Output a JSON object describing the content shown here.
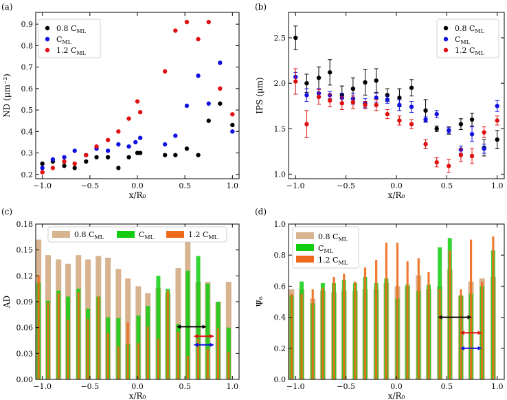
{
  "figure": {
    "panels": [
      "(a)",
      "(b)",
      "(c)",
      "(d)"
    ]
  },
  "legend": {
    "s1": {
      "main": "0.8 C",
      "sub": "ML"
    },
    "s2": {
      "main": "C",
      "sub": "ML"
    },
    "s3": {
      "main": "1.2 C",
      "sub": "ML"
    }
  },
  "colors": {
    "s1_marker": "#000000",
    "s2_marker": "#1010e0",
    "s3_marker": "#e01010",
    "s1_bar": "#d7b48f",
    "s2_bar": "#12cc12",
    "s3_bar": "#ee6a1a"
  },
  "chart_data": [
    {
      "id": "a",
      "type": "scatter",
      "ylabel": "ND (μm⁻²)",
      "xlabel": "x/R₀",
      "xlim": [
        -1.07,
        1.07
      ],
      "ylim": [
        0.18,
        0.955
      ],
      "xticks": [
        -1.0,
        -0.5,
        0.0,
        0.5,
        1.0
      ],
      "xtick_labels": [
        "−1.0",
        "−0.5",
        "0.0",
        "0.5",
        "1.0"
      ],
      "yticks": [
        0.2,
        0.3,
        0.4,
        0.5,
        0.6,
        0.7,
        0.8,
        0.9
      ],
      "ytick_labels": [
        "0.2",
        "0.3",
        "0.4",
        "0.5",
        "0.6",
        "0.7",
        "0.8",
        "0.9"
      ],
      "series": [
        {
          "name": "0.8 C_ML",
          "x": [
            -1.0,
            -0.89,
            -0.77,
            -0.66,
            -0.54,
            -0.43,
            -0.31,
            -0.2,
            -0.09,
            0.0,
            0.03,
            0.29,
            0.4,
            0.52,
            0.64,
            0.75,
            0.87,
            1.0
          ],
          "y": [
            0.25,
            0.26,
            0.24,
            0.23,
            0.26,
            0.28,
            0.28,
            0.23,
            0.28,
            0.3,
            0.3,
            0.29,
            0.29,
            0.32,
            0.29,
            0.45,
            0.53,
            0.43
          ]
        },
        {
          "name": "C_ML",
          "x": [
            -1.0,
            -0.89,
            -0.77,
            -0.66,
            -0.54,
            -0.43,
            -0.31,
            -0.2,
            -0.09,
            -0.02,
            0.03,
            0.29,
            0.4,
            0.52,
            0.64,
            0.75,
            0.87,
            1.0
          ],
          "y": [
            0.23,
            0.27,
            0.28,
            0.31,
            0.29,
            0.32,
            0.31,
            0.34,
            0.33,
            0.35,
            0.37,
            0.34,
            0.38,
            0.52,
            0.66,
            0.53,
            0.72,
            0.4
          ]
        },
        {
          "name": "1.2 C_ML",
          "x": [
            -1.0,
            -0.89,
            -0.77,
            -0.66,
            -0.54,
            -0.43,
            -0.31,
            -0.2,
            -0.09,
            0.0,
            0.03,
            0.29,
            0.4,
            0.52,
            0.64,
            0.75,
            0.87,
            1.0
          ],
          "y": [
            0.21,
            0.23,
            0.26,
            0.25,
            0.29,
            0.33,
            0.36,
            0.4,
            0.46,
            0.54,
            0.49,
            0.68,
            0.87,
            0.91,
            0.83,
            0.91,
            0.6,
            0.48
          ]
        }
      ]
    },
    {
      "id": "b",
      "type": "scatter-errorbar",
      "ylabel": "IPS (μm)",
      "xlabel": "x/R₀",
      "xlim": [
        -1.07,
        1.07
      ],
      "ylim": [
        0.95,
        2.78
      ],
      "xticks": [
        -1.0,
        -0.5,
        0.0,
        0.5,
        1.0
      ],
      "xtick_labels": [
        "−1.0",
        "−0.5",
        "0.0",
        "0.5",
        "1.0"
      ],
      "yticks": [
        1.0,
        1.5,
        2.0,
        2.5
      ],
      "ytick_labels": [
        "1.0",
        "1.5",
        "2.0",
        "2.5"
      ],
      "series": [
        {
          "name": "0.8 C_ML",
          "x": [
            -1.0,
            -0.89,
            -0.77,
            -0.66,
            -0.54,
            -0.43,
            -0.31,
            -0.2,
            -0.09,
            0.03,
            0.15,
            0.29,
            0.4,
            0.52,
            0.64,
            0.75,
            0.87,
            1.0
          ],
          "y": [
            2.5,
            2.0,
            2.06,
            2.12,
            1.87,
            1.94,
            2.01,
            2.03,
            1.87,
            1.84,
            1.95,
            1.7,
            1.5,
            1.48,
            1.55,
            1.6,
            1.29,
            1.38
          ],
          "err": [
            0.13,
            0.1,
            0.12,
            0.14,
            0.1,
            0.12,
            0.14,
            0.13,
            0.07,
            0.1,
            0.09,
            0.12,
            0.03,
            0.04,
            0.06,
            0.07,
            0.09,
            0.1
          ]
        },
        {
          "name": "C_ML",
          "x": [
            -1.0,
            -0.89,
            -0.77,
            -0.66,
            -0.54,
            -0.43,
            -0.31,
            -0.2,
            -0.09,
            0.03,
            0.15,
            0.29,
            0.4,
            0.52,
            0.64,
            0.75,
            0.87,
            1.0
          ],
          "y": [
            2.07,
            1.87,
            1.89,
            1.87,
            1.84,
            1.83,
            1.78,
            1.84,
            1.82,
            1.76,
            1.74,
            1.6,
            1.66,
            1.48,
            1.27,
            1.44,
            1.28,
            1.75
          ],
          "err": [
            0.05,
            0.07,
            0.05,
            0.04,
            0.05,
            0.06,
            0.05,
            0.05,
            0.04,
            0.06,
            0.06,
            0.03,
            0.04,
            0.03,
            0.04,
            0.08,
            0.05,
            0.06
          ]
        },
        {
          "name": "1.2 C_ML",
          "x": [
            -1.0,
            -0.89,
            -0.77,
            -0.66,
            -0.54,
            -0.43,
            -0.31,
            -0.2,
            -0.09,
            0.03,
            0.15,
            0.29,
            0.4,
            0.52,
            0.64,
            0.75,
            0.87,
            1.0
          ],
          "y": [
            2.02,
            1.55,
            1.85,
            1.81,
            1.78,
            1.79,
            1.76,
            1.76,
            1.66,
            1.59,
            1.55,
            1.33,
            1.13,
            1.09,
            1.21,
            1.2,
            1.46,
            1.59
          ],
          "err": [
            0.14,
            0.15,
            0.08,
            0.07,
            0.07,
            0.07,
            0.04,
            0.06,
            0.05,
            0.05,
            0.05,
            0.05,
            0.05,
            0.07,
            0.07,
            0.08,
            0.06,
            0.05
          ]
        }
      ]
    },
    {
      "id": "c",
      "type": "bar",
      "ylabel": "AD",
      "xlabel": "x/R₀",
      "xlim": [
        -1.07,
        1.07
      ],
      "ylim": [
        0.0,
        0.18
      ],
      "xticks": [
        -1.0,
        -0.5,
        0.0,
        0.5,
        1.0
      ],
      "xtick_labels": [
        "−1.0",
        "−0.5",
        "0.0",
        "0.5",
        "1.0"
      ],
      "yticks": [
        0.0,
        0.03,
        0.06,
        0.09,
        0.12,
        0.15,
        0.18
      ],
      "ytick_labels": [
        "0.00",
        "0.03",
        "0.06",
        "0.09",
        "0.12",
        "0.15",
        "0.18"
      ],
      "x": [
        -1.04,
        -0.94,
        -0.83,
        -0.73,
        -0.62,
        -0.52,
        -0.41,
        -0.31,
        -0.2,
        -0.1,
        0.01,
        0.11,
        0.22,
        0.32,
        0.43,
        0.53,
        0.64,
        0.74,
        0.85,
        0.96
      ],
      "series": [
        {
          "name": "0.8 C_ML",
          "values": [
            0.162,
            0.144,
            0.139,
            0.134,
            0.144,
            0.139,
            0.143,
            0.141,
            0.128,
            0.117,
            0.108,
            0.1,
            0.106,
            0.1,
            0.129,
            0.159,
            0.113,
            0.113,
            0.09,
            0.113
          ]
        },
        {
          "name": "C_ML",
          "values": [
            0.112,
            0.091,
            0.103,
            0.096,
            0.105,
            0.082,
            0.096,
            0.072,
            0.071,
            0.041,
            0.074,
            0.085,
            0.12,
            0.105,
            0.064,
            0.126,
            0.143,
            0.111,
            0.09,
            0.06
          ]
        },
        {
          "name": "1.2 C_ML",
          "values": [
            0.12,
            0.089,
            0.1,
            0.069,
            0.101,
            0.07,
            0.096,
            0.054,
            0.038,
            0.066,
            0.042,
            0.061,
            0.047,
            0.103,
            0.055,
            0.027,
            0.047,
            0.035,
            0.059,
            0.032
          ]
        }
      ],
      "annotations": [
        {
          "type": "double-arrow",
          "color": "#000000",
          "x1": 0.42,
          "x2": 0.72,
          "y": 0.061
        },
        {
          "type": "double-arrow",
          "color": "#e01010",
          "x1": 0.6,
          "x2": 0.8,
          "y": 0.05
        },
        {
          "type": "double-arrow",
          "color": "#1010e0",
          "x1": 0.6,
          "x2": 0.8,
          "y": 0.04
        }
      ]
    },
    {
      "id": "d",
      "type": "bar",
      "ylabel": "Ψ₆",
      "xlabel": "x/R₀",
      "xlim": [
        -1.07,
        1.07
      ],
      "ylim": [
        0.0,
        1.0
      ],
      "xticks": [
        -1.0,
        -0.5,
        0.0,
        0.5,
        1.0
      ],
      "xtick_labels": [
        "−1.0",
        "−0.5",
        "0.0",
        "0.5",
        "1.0"
      ],
      "yticks": [
        0.0,
        0.2,
        0.4,
        0.6,
        0.8,
        1.0
      ],
      "ytick_labels": [
        "0.0",
        "0.2",
        "0.4",
        "0.6",
        "0.8",
        "1.0"
      ],
      "x": [
        -1.04,
        -0.94,
        -0.83,
        -0.73,
        -0.62,
        -0.52,
        -0.41,
        -0.31,
        -0.2,
        -0.1,
        0.01,
        0.11,
        0.22,
        0.32,
        0.43,
        0.53,
        0.64,
        0.74,
        0.85,
        0.96
      ],
      "series": [
        {
          "name": "0.8 C_ML",
          "values": [
            0.58,
            0.58,
            0.52,
            0.57,
            0.56,
            0.57,
            0.57,
            0.58,
            0.58,
            0.62,
            0.6,
            0.6,
            0.67,
            0.58,
            0.6,
            0.71,
            0.54,
            0.63,
            0.65,
            0.66
          ]
        },
        {
          "name": "C_ML",
          "values": [
            0.54,
            0.63,
            0.49,
            0.62,
            0.62,
            0.64,
            0.62,
            0.66,
            0.62,
            0.65,
            0.52,
            0.61,
            0.57,
            0.61,
            0.85,
            0.91,
            0.54,
            0.55,
            0.6,
            0.83
          ]
        },
        {
          "name": "1.2 C_ML",
          "values": [
            0.55,
            0.55,
            0.58,
            0.59,
            0.66,
            0.68,
            0.63,
            0.72,
            0.77,
            0.88,
            0.88,
            0.76,
            0.78,
            0.69,
            0.58,
            0.83,
            0.58,
            0.9,
            0.63,
            0.92
          ]
        }
      ],
      "annotations": [
        {
          "type": "double-arrow",
          "color": "#000000",
          "x1": 0.42,
          "x2": 0.74,
          "y": 0.4
        },
        {
          "type": "double-arrow",
          "color": "#e01010",
          "x1": 0.64,
          "x2": 0.84,
          "y": 0.3
        },
        {
          "type": "double-arrow",
          "color": "#1010e0",
          "x1": 0.64,
          "x2": 0.84,
          "y": 0.2
        }
      ]
    }
  ]
}
